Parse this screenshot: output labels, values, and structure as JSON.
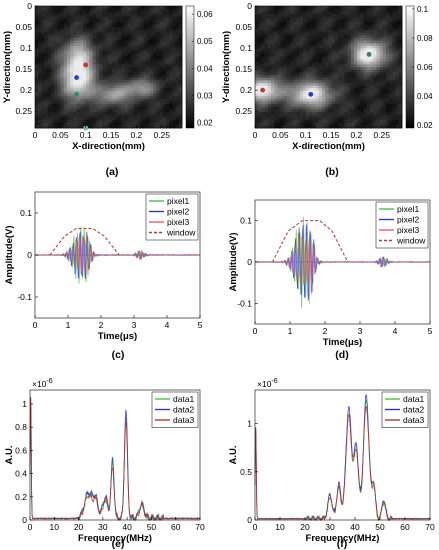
{
  "chart_data": [
    {
      "panel": "(a)",
      "type": "heatmap",
      "xlabel": "X-direction(mm)",
      "ylabel": "Y-direction(mm)",
      "xticks": [
        "0",
        "0.05",
        "0.1",
        "0.15",
        "0.2",
        "0.25"
      ],
      "yticks": [
        "0",
        "0.05",
        "0.1",
        "0.15",
        "0.2",
        "0.25"
      ],
      "xlim": [
        0,
        0.29
      ],
      "ylim": [
        0,
        0.29
      ],
      "colorbar_ticks": [
        "0.06",
        "0.05",
        "0.04",
        "0.03",
        "0.02"
      ],
      "colorbar_range": [
        0.018,
        0.063
      ],
      "blobs": [
        {
          "x": 0.085,
          "y": 0.17,
          "sx": 0.03,
          "sy": 0.05,
          "v": 1.0
        },
        {
          "x": 0.085,
          "y": 0.11,
          "sx": 0.03,
          "sy": 0.035,
          "v": 0.45
        },
        {
          "x": 0.155,
          "y": 0.21,
          "sx": 0.035,
          "sy": 0.025,
          "v": 0.55
        },
        {
          "x": 0.21,
          "y": 0.195,
          "sx": 0.03,
          "sy": 0.022,
          "v": 0.5
        }
      ],
      "markers": [
        {
          "x": 0.1,
          "y": 0.14,
          "color": "#c0392b"
        },
        {
          "x": 0.082,
          "y": 0.17,
          "color": "#1f3fd6"
        },
        {
          "x": 0.082,
          "y": 0.21,
          "color": "#2e8b57"
        },
        {
          "x": 0.1,
          "y": 0.29,
          "color": "#59c48a"
        }
      ]
    },
    {
      "panel": "(b)",
      "type": "heatmap",
      "xlabel": "X-direction(mm)",
      "ylabel": "Y-direction(mm)",
      "xticks": [
        "0",
        "0.05",
        "0.1",
        "0.15",
        "0.2",
        "0.25"
      ],
      "yticks": [
        "0",
        "0.05",
        "0.1",
        "0.15",
        "0.2",
        "0.25"
      ],
      "xlim": [
        0,
        0.29
      ],
      "ylim": [
        0,
        0.29
      ],
      "colorbar_ticks": [
        "0.1",
        "0.08",
        "0.06",
        "0.04",
        "0.02"
      ],
      "colorbar_range": [
        0.018,
        0.102
      ],
      "blobs": [
        {
          "x": 0.015,
          "y": 0.2,
          "sx": 0.035,
          "sy": 0.028,
          "v": 0.95
        },
        {
          "x": 0.11,
          "y": 0.21,
          "sx": 0.04,
          "sy": 0.03,
          "v": 0.9
        },
        {
          "x": 0.225,
          "y": 0.115,
          "sx": 0.032,
          "sy": 0.032,
          "v": 1.0
        }
      ],
      "markers": [
        {
          "x": 0.015,
          "y": 0.2,
          "color": "#c0392b"
        },
        {
          "x": 0.11,
          "y": 0.21,
          "color": "#1f3fd6"
        },
        {
          "x": 0.225,
          "y": 0.115,
          "color": "#2e8b57"
        }
      ]
    },
    {
      "panel": "(c)",
      "type": "line",
      "xlabel": "Time(μs)",
      "ylabel": "Amplitude(V)",
      "xticks": [
        "0",
        "1",
        "2",
        "3",
        "4",
        "5"
      ],
      "yticks": [
        "-0.1",
        "0",
        "0.1"
      ],
      "xlim": [
        0,
        5
      ],
      "ylim": [
        -0.15,
        0.15
      ],
      "legend_position": "top-right",
      "series": [
        {
          "name": "pixel1",
          "color": "#3cc83c"
        },
        {
          "name": "pixel2",
          "color": "#3333cc"
        },
        {
          "name": "pixel3",
          "color": "#e05a7a"
        },
        {
          "name": "window",
          "color": "#b03a2e",
          "dashed": true
        }
      ],
      "window": {
        "x": [
          0.45,
          0.9,
          1.25,
          1.75,
          2.1,
          2.55
        ],
        "y": [
          0,
          0.045,
          0.063,
          0.063,
          0.045,
          0
        ]
      },
      "burst": {
        "center": 1.35,
        "span": 0.55,
        "amp": 0.075
      },
      "echo": {
        "center": 3.2,
        "span": 0.15,
        "amp": 0.012
      }
    },
    {
      "panel": "(d)",
      "type": "line",
      "xlabel": "Time(μs)",
      "ylabel": "Amplitude(V)",
      "xticks": [
        "0",
        "1",
        "2",
        "3",
        "4",
        "5"
      ],
      "yticks": [
        "-0.1",
        "0",
        "0.1"
      ],
      "xlim": [
        0,
        5
      ],
      "ylim": [
        -0.15,
        0.15
      ],
      "legend_position": "top-right",
      "series": [
        {
          "name": "pixel1",
          "color": "#3cc83c"
        },
        {
          "name": "pixel2",
          "color": "#3333cc"
        },
        {
          "name": "pixel3",
          "color": "#e05a7a"
        },
        {
          "name": "window",
          "color": "#b03a2e",
          "dashed": true
        }
      ],
      "window": {
        "x": [
          0.5,
          0.95,
          1.35,
          1.85,
          2.2,
          2.65
        ],
        "y": [
          0,
          0.075,
          0.1,
          0.1,
          0.075,
          0
        ]
      },
      "burst": {
        "center": 1.35,
        "span": 0.55,
        "amp": 0.12
      },
      "echo": {
        "center": 3.65,
        "span": 0.15,
        "amp": 0.015
      }
    },
    {
      "panel": "(e)",
      "type": "line",
      "xlabel": "Frequency(MHz)",
      "ylabel": "A.U.",
      "exponent": "×10",
      "exponent_power": "-6",
      "xticks": [
        "0",
        "10",
        "20",
        "30",
        "40",
        "50",
        "60",
        "70"
      ],
      "yticks": [
        "0",
        "0.2",
        "0.4",
        "0.6",
        "0.8",
        "1"
      ],
      "xlim": [
        0,
        70
      ],
      "ylim": [
        0,
        1.12
      ],
      "legend_position": "top-right",
      "series": [
        {
          "name": "data1",
          "color": "#3cc83c",
          "scale": 0.95
        },
        {
          "name": "data2",
          "color": "#3333cc",
          "scale": 1.0
        },
        {
          "name": "data3",
          "color": "#b03a2e",
          "scale": 0.88
        }
      ],
      "peaks": [
        {
          "f": 0.3,
          "a": 1.05,
          "w": 0.3
        },
        {
          "f": 24,
          "a": 0.22,
          "w": 2.2
        },
        {
          "f": 27,
          "a": 0.16,
          "w": 1.5
        },
        {
          "f": 31,
          "a": 0.18,
          "w": 1.5
        },
        {
          "f": 34,
          "a": 0.5,
          "w": 0.9
        },
        {
          "f": 39.5,
          "a": 0.93,
          "w": 0.9
        },
        {
          "f": 46,
          "a": 0.12,
          "w": 1.5
        }
      ]
    },
    {
      "panel": "(f)",
      "type": "line",
      "xlabel": "Frequency(MHz)",
      "ylabel": "A.U.",
      "exponent": "×10",
      "exponent_power": "-6",
      "xticks": [
        "0",
        "10",
        "20",
        "30",
        "40",
        "50",
        "60",
        "70"
      ],
      "yticks": [
        "0",
        "0.5",
        "1"
      ],
      "xlim": [
        0,
        70
      ],
      "ylim": [
        0,
        1.35
      ],
      "legend_position": "top-right",
      "series": [
        {
          "name": "data1",
          "color": "#3cc83c",
          "scale": 0.95
        },
        {
          "name": "data2",
          "color": "#3333cc",
          "scale": 1.0
        },
        {
          "name": "data3",
          "color": "#b03a2e",
          "scale": 0.92
        }
      ],
      "peaks": [
        {
          "f": 0.3,
          "a": 0.95,
          "w": 0.3
        },
        {
          "f": 30,
          "a": 0.25,
          "w": 1.2
        },
        {
          "f": 33.5,
          "a": 0.35,
          "w": 1.2
        },
        {
          "f": 37.5,
          "a": 1.15,
          "w": 1.6
        },
        {
          "f": 40.5,
          "a": 0.75,
          "w": 1.3
        },
        {
          "f": 44.5,
          "a": 1.27,
          "w": 1.6
        },
        {
          "f": 47.5,
          "a": 0.35,
          "w": 1.0
        },
        {
          "f": 51.5,
          "a": 0.2,
          "w": 1.0
        }
      ]
    }
  ]
}
